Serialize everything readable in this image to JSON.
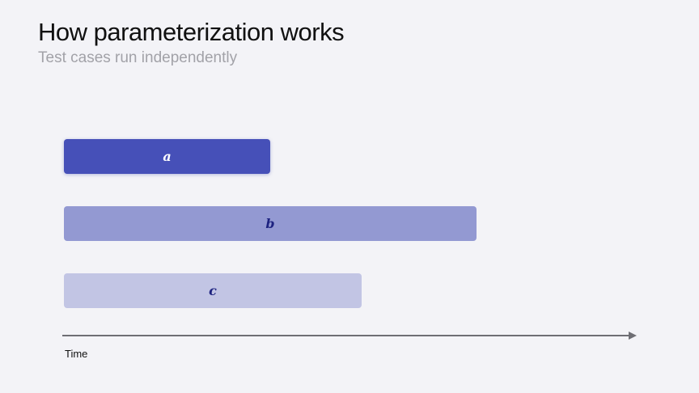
{
  "header": {
    "title": "How parameterization works",
    "subtitle": "Test cases run independently"
  },
  "diagram": {
    "axis_label": "Time",
    "axis_max": 100,
    "test_cases": [
      {
        "label": "a",
        "duration": 36,
        "fill": "#4650b8",
        "text_color": "#ffffff"
      },
      {
        "label": "b",
        "duration": 72,
        "fill": "#9399d2",
        "text_color": "#1e2380"
      },
      {
        "label": "c",
        "duration": 52,
        "fill": "#c2c5e4",
        "text_color": "#1e2380"
      }
    ],
    "axis_color": "#6e6e74"
  }
}
